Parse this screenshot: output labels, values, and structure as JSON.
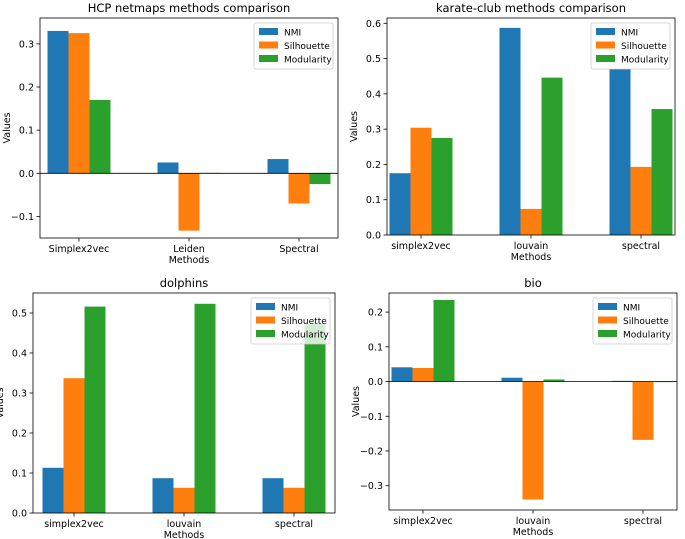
{
  "chart_data": [
    {
      "type": "bar",
      "title": "HCP netmaps methods comparison",
      "xlabel": "Methods",
      "ylabel": "Values",
      "categories": [
        "Simplex2vec",
        "Leiden",
        "Spectral"
      ],
      "series": [
        {
          "name": "NMI",
          "color": "#1f77b4",
          "values": [
            0.33,
            0.025,
            0.033
          ]
        },
        {
          "name": "Silhouette",
          "color": "#ff7f0e",
          "values": [
            0.325,
            -0.133,
            -0.07
          ]
        },
        {
          "name": "Modularity",
          "color": "#2ca02c",
          "values": [
            0.17,
            0.001,
            -0.025
          ]
        }
      ],
      "ylim": [
        -0.15,
        0.36
      ],
      "yticks": [
        -0.1,
        0.0,
        0.1,
        0.2,
        0.3
      ],
      "ytick_labels": [
        "−0.1",
        "0.0",
        "0.1",
        "0.2",
        "0.3"
      ],
      "legend": "top-right",
      "grid": false
    },
    {
      "type": "bar",
      "title": "karate-club methods comparison",
      "xlabel": "Methods",
      "ylabel": "Values",
      "categories": [
        "simplex2vec",
        "louvain",
        "spectral"
      ],
      "series": [
        {
          "name": "NMI",
          "color": "#1f77b4",
          "values": [
            0.175,
            0.587,
            0.47
          ]
        },
        {
          "name": "Silhouette",
          "color": "#ff7f0e",
          "values": [
            0.304,
            0.074,
            0.193
          ]
        },
        {
          "name": "Modularity",
          "color": "#2ca02c",
          "values": [
            0.275,
            0.446,
            0.357
          ]
        }
      ],
      "ylim": [
        0,
        0.615
      ],
      "yticks": [
        0.0,
        0.1,
        0.2,
        0.3,
        0.4,
        0.5,
        0.6
      ],
      "ytick_labels": [
        "0.0",
        "0.1",
        "0.2",
        "0.3",
        "0.4",
        "0.5",
        "0.6"
      ],
      "legend": "top-right",
      "grid": false
    },
    {
      "type": "bar",
      "title": "dolphins",
      "xlabel": "Methods",
      "ylabel": "Values",
      "categories": [
        "simplex2vec",
        "louvain",
        "spectral"
      ],
      "series": [
        {
          "name": "NMI",
          "color": "#1f77b4",
          "values": [
            0.113,
            0.087,
            0.087
          ]
        },
        {
          "name": "Silhouette",
          "color": "#ff7f0e",
          "values": [
            0.337,
            0.063,
            0.063
          ]
        },
        {
          "name": "Modularity",
          "color": "#2ca02c",
          "values": [
            0.516,
            0.523,
            0.472
          ]
        }
      ],
      "ylim": [
        0,
        0.55
      ],
      "yticks": [
        0.0,
        0.1,
        0.2,
        0.3,
        0.4,
        0.5
      ],
      "ytick_labels": [
        "0.0",
        "0.1",
        "0.2",
        "0.3",
        "0.4",
        "0.5"
      ],
      "legend": "top-right",
      "grid": false
    },
    {
      "type": "bar",
      "title": "bio",
      "xlabel": "Methods",
      "ylabel": "Values",
      "categories": [
        "simplex2vec",
        "louvain",
        "spectral"
      ],
      "series": [
        {
          "name": "NMI",
          "color": "#1f77b4",
          "values": [
            0.041,
            0.011,
            0.002
          ]
        },
        {
          "name": "Silhouette",
          "color": "#ff7f0e",
          "values": [
            0.039,
            -0.34,
            -0.168
          ]
        },
        {
          "name": "Modularity",
          "color": "#2ca02c",
          "values": [
            0.235,
            0.006,
            0.0
          ]
        }
      ],
      "ylim": [
        -0.37,
        0.255
      ],
      "yticks": [
        -0.3,
        -0.2,
        -0.1,
        0.0,
        0.1,
        0.2
      ],
      "ytick_labels": [
        "−0.3",
        "−0.2",
        "−0.1",
        "0.0",
        "0.1",
        "0.2"
      ],
      "legend": "top-right",
      "grid": false
    }
  ]
}
